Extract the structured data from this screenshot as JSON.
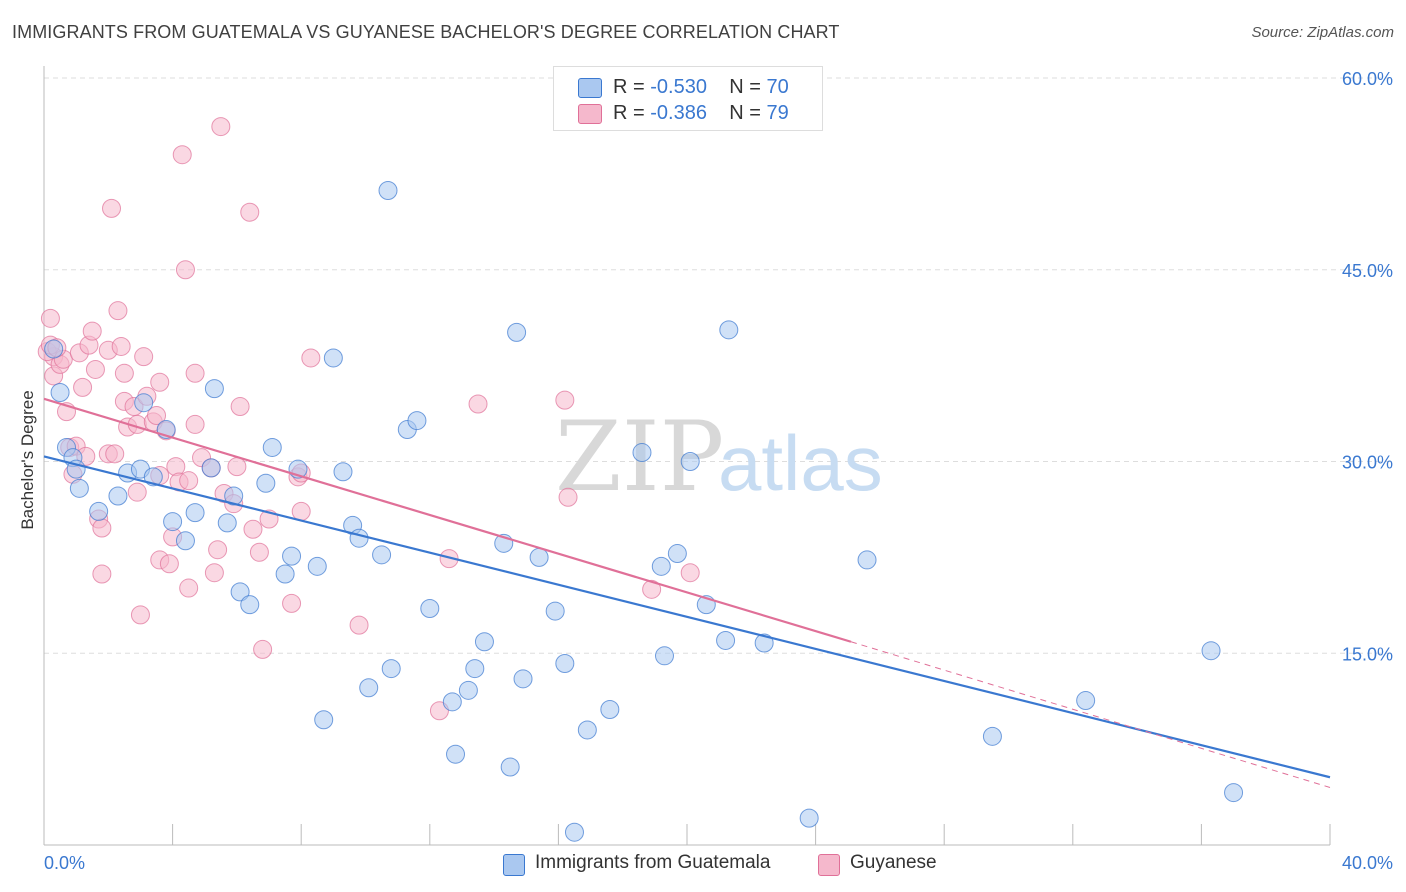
{
  "title": "IMMIGRANTS FROM GUATEMALA VS GUYANESE BACHELOR'S DEGREE CORRELATION CHART",
  "source": "Source: ZipAtlas.com",
  "watermark": {
    "zip": "ZIP",
    "atlas": "atlas"
  },
  "legend": {
    "series1": {
      "r_label": "R = ",
      "r_value": "-0.530",
      "n_label": "N = ",
      "n_value": "70"
    },
    "series2": {
      "r_label": "R = ",
      "r_value": "-0.386",
      "n_label": "N = ",
      "n_value": "79"
    }
  },
  "bottom_legend": {
    "series1": "Immigrants from Guatemala",
    "series2": "Guyanese"
  },
  "colors": {
    "blue": "#3a78d0",
    "pink": "#e07098",
    "blue_fill": "#aac8f0",
    "pink_fill": "#f5b8cc",
    "axis_text": "#3a78d0",
    "grid": "#dddddd"
  },
  "chart_data": {
    "type": "scatter",
    "title": "IMMIGRANTS FROM GUATEMALA VS GUYANESE BACHELOR'S DEGREE CORRELATION CHART",
    "xlabel": "",
    "ylabel": "Bachelor's Degree",
    "xlim": [
      0,
      40
    ],
    "ylim": [
      0,
      60
    ],
    "x_tick_labels": [
      "0.0%",
      "40.0%"
    ],
    "y_tick_labels": [
      "15.0%",
      "30.0%",
      "45.0%",
      "60.0%"
    ],
    "y_ticks": [
      15,
      30,
      45,
      60
    ],
    "x_minor_ticks": [
      0,
      4,
      8,
      12,
      16,
      20,
      24,
      28,
      32,
      36,
      40
    ],
    "series": [
      {
        "name": "Immigrants from Guatemala",
        "color": "#3a78d0",
        "trend": {
          "x": [
            0,
            40
          ],
          "y": [
            30.4,
            5.3
          ],
          "dashed_to": null
        },
        "points": [
          [
            0.3,
            38.8
          ],
          [
            0.5,
            35.4
          ],
          [
            0.7,
            31.1
          ],
          [
            0.9,
            30.3
          ],
          [
            1.0,
            29.4
          ],
          [
            1.1,
            27.9
          ],
          [
            1.7,
            26.1
          ],
          [
            2.3,
            27.3
          ],
          [
            2.6,
            29.1
          ],
          [
            3.0,
            29.4
          ],
          [
            3.1,
            34.6
          ],
          [
            3.4,
            28.8
          ],
          [
            3.8,
            32.5
          ],
          [
            4.0,
            25.3
          ],
          [
            4.4,
            23.8
          ],
          [
            4.7,
            26.0
          ],
          [
            5.2,
            29.5
          ],
          [
            5.3,
            35.7
          ],
          [
            5.7,
            25.2
          ],
          [
            5.9,
            27.3
          ],
          [
            6.1,
            19.8
          ],
          [
            6.4,
            18.8
          ],
          [
            6.9,
            28.3
          ],
          [
            7.1,
            31.1
          ],
          [
            7.5,
            21.2
          ],
          [
            7.7,
            22.6
          ],
          [
            7.9,
            29.4
          ],
          [
            8.5,
            21.8
          ],
          [
            8.7,
            9.8
          ],
          [
            9.0,
            38.1
          ],
          [
            9.3,
            29.2
          ],
          [
            9.6,
            25.0
          ],
          [
            9.8,
            24.0
          ],
          [
            10.1,
            12.3
          ],
          [
            10.5,
            22.7
          ],
          [
            10.8,
            13.8
          ],
          [
            10.7,
            51.2
          ],
          [
            11.3,
            32.5
          ],
          [
            11.6,
            33.2
          ],
          [
            12.0,
            18.5
          ],
          [
            12.7,
            11.2
          ],
          [
            12.8,
            7.1
          ],
          [
            13.2,
            12.1
          ],
          [
            13.4,
            13.8
          ],
          [
            13.7,
            15.9
          ],
          [
            14.3,
            23.6
          ],
          [
            14.5,
            6.1
          ],
          [
            14.7,
            40.1
          ],
          [
            14.9,
            13.0
          ],
          [
            15.4,
            22.5
          ],
          [
            15.9,
            18.3
          ],
          [
            16.2,
            14.2
          ],
          [
            16.5,
            1.0
          ],
          [
            16.9,
            9.0
          ],
          [
            17.6,
            10.6
          ],
          [
            18.6,
            30.7
          ],
          [
            19.2,
            21.8
          ],
          [
            19.3,
            14.8
          ],
          [
            19.7,
            22.8
          ],
          [
            20.1,
            30.0
          ],
          [
            20.6,
            18.8
          ],
          [
            21.3,
            40.3
          ],
          [
            21.2,
            16.0
          ],
          [
            22.4,
            15.8
          ],
          [
            23.8,
            2.1
          ],
          [
            25.6,
            22.3
          ],
          [
            29.5,
            8.5
          ],
          [
            32.4,
            11.3
          ],
          [
            36.3,
            15.2
          ],
          [
            37.0,
            4.1
          ]
        ]
      },
      {
        "name": "Guyanese",
        "color": "#e07098",
        "trend": {
          "x": [
            0,
            25.1
          ],
          "y": [
            34.9,
            15.9
          ],
          "dashed_to": [
            40,
            4.5
          ]
        },
        "points": [
          [
            0.2,
            41.2
          ],
          [
            0.3,
            36.7
          ],
          [
            0.3,
            38.2
          ],
          [
            0.5,
            37.6
          ],
          [
            0.6,
            38.0
          ],
          [
            0.7,
            33.9
          ],
          [
            0.8,
            31.1
          ],
          [
            0.9,
            29.0
          ],
          [
            1.0,
            31.2
          ],
          [
            1.1,
            38.5
          ],
          [
            1.2,
            35.8
          ],
          [
            1.3,
            30.4
          ],
          [
            1.4,
            39.1
          ],
          [
            1.5,
            40.2
          ],
          [
            1.6,
            37.2
          ],
          [
            1.7,
            25.5
          ],
          [
            1.8,
            24.8
          ],
          [
            1.8,
            21.2
          ],
          [
            2.0,
            30.6
          ],
          [
            2.0,
            38.7
          ],
          [
            2.1,
            49.8
          ],
          [
            2.2,
            30.6
          ],
          [
            2.3,
            41.8
          ],
          [
            2.4,
            39.0
          ],
          [
            2.5,
            34.7
          ],
          [
            2.5,
            36.9
          ],
          [
            2.6,
            32.7
          ],
          [
            2.8,
            34.3
          ],
          [
            2.9,
            32.9
          ],
          [
            2.9,
            27.6
          ],
          [
            3.0,
            18.0
          ],
          [
            3.1,
            38.2
          ],
          [
            3.2,
            35.1
          ],
          [
            3.4,
            33.1
          ],
          [
            3.5,
            33.6
          ],
          [
            3.6,
            22.3
          ],
          [
            3.6,
            28.9
          ],
          [
            3.6,
            36.2
          ],
          [
            3.8,
            32.4
          ],
          [
            3.9,
            22.0
          ],
          [
            4.0,
            24.1
          ],
          [
            4.1,
            29.6
          ],
          [
            4.2,
            28.4
          ],
          [
            4.3,
            54.0
          ],
          [
            4.4,
            45.0
          ],
          [
            4.5,
            20.1
          ],
          [
            4.5,
            28.5
          ],
          [
            4.7,
            36.9
          ],
          [
            4.7,
            32.9
          ],
          [
            4.9,
            30.3
          ],
          [
            5.2,
            29.5
          ],
          [
            5.3,
            21.3
          ],
          [
            5.4,
            23.1
          ],
          [
            5.5,
            56.2
          ],
          [
            5.6,
            27.5
          ],
          [
            5.9,
            26.7
          ],
          [
            6.0,
            29.6
          ],
          [
            6.1,
            34.3
          ],
          [
            6.4,
            49.5
          ],
          [
            6.5,
            24.7
          ],
          [
            6.7,
            22.9
          ],
          [
            6.8,
            15.3
          ],
          [
            7.0,
            25.5
          ],
          [
            7.7,
            18.9
          ],
          [
            7.9,
            28.8
          ],
          [
            8.0,
            26.1
          ],
          [
            8.0,
            29.1
          ],
          [
            8.3,
            38.1
          ],
          [
            9.8,
            17.2
          ],
          [
            12.3,
            10.5
          ],
          [
            12.6,
            22.4
          ],
          [
            13.5,
            34.5
          ],
          [
            16.2,
            34.8
          ],
          [
            16.3,
            27.2
          ],
          [
            18.9,
            20.0
          ],
          [
            20.1,
            21.3
          ],
          [
            0.1,
            38.6
          ],
          [
            0.2,
            39.1
          ],
          [
            0.4,
            38.9
          ]
        ]
      }
    ]
  }
}
